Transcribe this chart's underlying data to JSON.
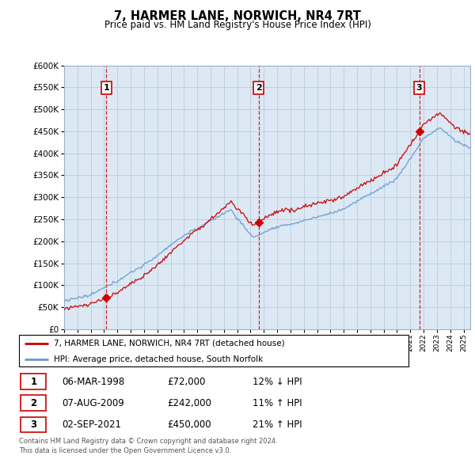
{
  "title": "7, HARMER LANE, NORWICH, NR4 7RT",
  "subtitle": "Price paid vs. HM Land Registry's House Price Index (HPI)",
  "background_color": "#ffffff",
  "plot_bg_color": "#dce9f5",
  "ylim": [
    0,
    600000
  ],
  "yticks": [
    0,
    50000,
    100000,
    150000,
    200000,
    250000,
    300000,
    350000,
    400000,
    450000,
    500000,
    550000,
    600000
  ],
  "xlim_start": 1995.0,
  "xlim_end": 2025.5,
  "sale_dates": [
    1998.18,
    2009.6,
    2021.67
  ],
  "sale_prices": [
    72000,
    242000,
    450000
  ],
  "sale_labels": [
    "1",
    "2",
    "3"
  ],
  "vline_color": "#cc0000",
  "sale_marker_color": "#cc0000",
  "legend_line1": "7, HARMER LANE, NORWICH, NR4 7RT (detached house)",
  "legend_line2": "HPI: Average price, detached house, South Norfolk",
  "table_rows": [
    [
      "1",
      "06-MAR-1998",
      "£72,000",
      "12% ↓ HPI"
    ],
    [
      "2",
      "07-AUG-2009",
      "£242,000",
      "11% ↑ HPI"
    ],
    [
      "3",
      "02-SEP-2021",
      "£450,000",
      "21% ↑ HPI"
    ]
  ],
  "footer": "Contains HM Land Registry data © Crown copyright and database right 2024.\nThis data is licensed under the Open Government Licence v3.0.",
  "hpi_color": "#6699cc",
  "price_line_color": "#cc0000",
  "grid_color": "#bbccdd"
}
